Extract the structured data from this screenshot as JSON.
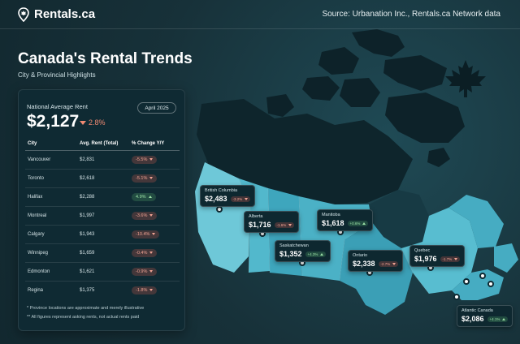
{
  "brand": {
    "name": "Rentals.ca",
    "icon": "map-pin-leaf-icon"
  },
  "source": "Source: Urbanation Inc., Rentals.ca Network data",
  "title": "Canada's Rental Trends",
  "subtitle": "City & Provincial Highlights",
  "national": {
    "label": "National Average Rent",
    "value": "$2,127",
    "change": "2.8%",
    "change_direction": "down",
    "period": "April 2025"
  },
  "table": {
    "headers": [
      "City",
      "Avg. Rent (Total)",
      "% Change Y/Y"
    ],
    "rows": [
      {
        "city": "Vancouver",
        "rent": "$2,831",
        "change": "-5.5%",
        "dir": "down"
      },
      {
        "city": "Toronto",
        "rent": "$2,618",
        "change": "-5.1%",
        "dir": "down"
      },
      {
        "city": "Halifax",
        "rent": "$2,288",
        "change": "4.9%",
        "dir": "up"
      },
      {
        "city": "Montreal",
        "rent": "$1,997",
        "change": "-3.6%",
        "dir": "down"
      },
      {
        "city": "Calgary",
        "rent": "$1,943",
        "change": "-10.4%",
        "dir": "down"
      },
      {
        "city": "Winnipeg",
        "rent": "$1,659",
        "change": "-0.4%",
        "dir": "down"
      },
      {
        "city": "Edmonton",
        "rent": "$1,621",
        "change": "-0.9%",
        "dir": "down"
      },
      {
        "city": "Regina",
        "rent": "$1,375",
        "change": "-1.8%",
        "dir": "down"
      }
    ]
  },
  "notes": [
    "* Province locations are approximate and merely illustrative",
    "** All figures represent asking rents, not actual rents paid"
  ],
  "provinces": [
    {
      "name": "British Columbia",
      "value": "$2,483",
      "change": "-3.2%",
      "dir": "down"
    },
    {
      "name": "Alberta",
      "value": "$1,716",
      "change": "-1.6%",
      "dir": "down"
    },
    {
      "name": "Saskatchewan",
      "value": "$1,352",
      "change": "+4.3%",
      "dir": "up"
    },
    {
      "name": "Manitoba",
      "value": "$1,618",
      "change": "+0.6%",
      "dir": "up"
    },
    {
      "name": "Ontario",
      "value": "$2,338",
      "change": "-2.7%",
      "dir": "down"
    },
    {
      "name": "Quebec",
      "value": "$1,976",
      "change": "-1.7%",
      "dir": "down"
    },
    {
      "name": "Atlantic Canada",
      "value": "$2,086",
      "change": "+4.1%",
      "dir": "up"
    }
  ],
  "colors": {
    "background": "#17313a",
    "panel": "#0f2a33",
    "negative": "#f08a72",
    "positive": "#9be0a6",
    "map_dark": "#0d2229",
    "map_teal": "#3fa9c0",
    "map_light": "#6ec8d8"
  },
  "decor": {
    "maple_leaf": "maple-leaf-icon"
  }
}
